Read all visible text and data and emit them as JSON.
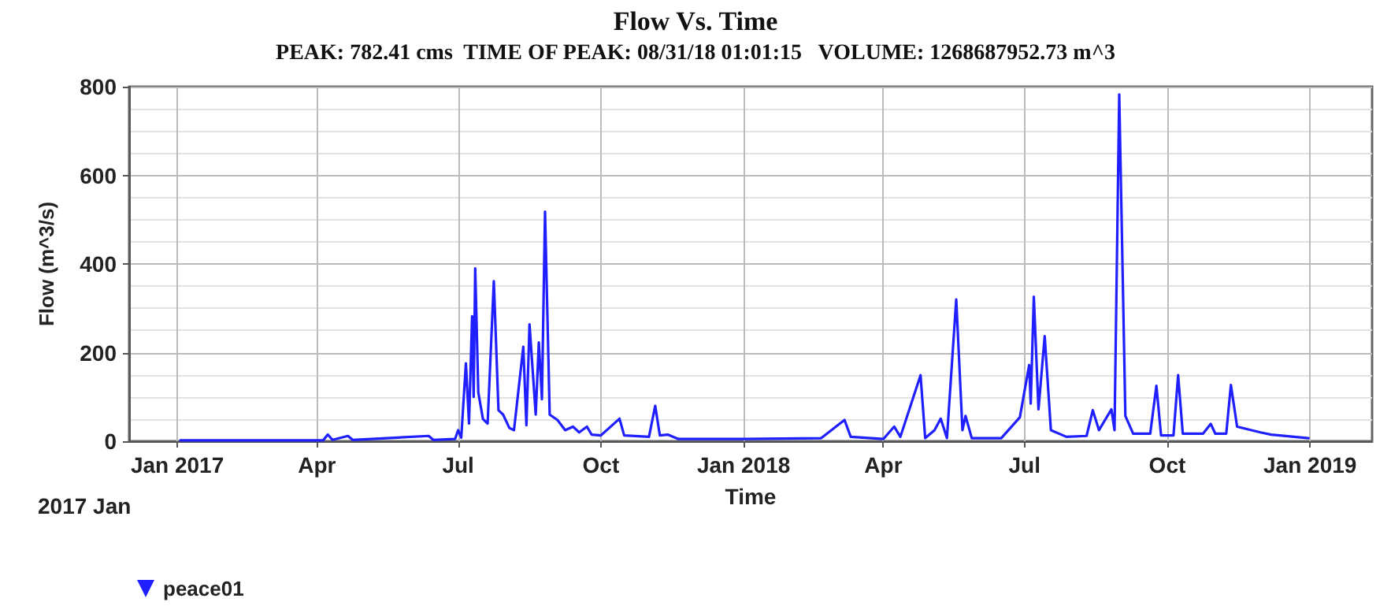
{
  "chart_data": {
    "type": "line",
    "title": "Flow Vs. Time",
    "subtitle": "PEAK: 782.41 cms  TIME OF PEAK: 08/31/18 01:01:15   VOLUME: 1268687952.73 m^3",
    "xlabel": "Time",
    "ylabel": "Flow (m^3/s)",
    "annotations": [
      "2017 Jan"
    ],
    "x": [
      "2017-01-03",
      "2017-04-05",
      "2017-04-08",
      "2017-04-11",
      "2017-04-21",
      "2017-04-24",
      "2017-06-12",
      "2017-06-15",
      "2017-06-29",
      "2017-07-01",
      "2017-07-03",
      "2017-07-06",
      "2017-07-08",
      "2017-07-10",
      "2017-07-11",
      "2017-07-12",
      "2017-07-14",
      "2017-07-17",
      "2017-07-20",
      "2017-07-24",
      "2017-07-27",
      "2017-07-30",
      "2017-08-03",
      "2017-08-06",
      "2017-08-12",
      "2017-08-14",
      "2017-08-16",
      "2017-08-20",
      "2017-08-22",
      "2017-08-24",
      "2017-08-26",
      "2017-08-29",
      "2017-09-03",
      "2017-09-08",
      "2017-09-13",
      "2017-09-17",
      "2017-09-22",
      "2017-09-25",
      "2017-10-01",
      "2017-10-13",
      "2017-10-16",
      "2017-11-01",
      "2017-11-05",
      "2017-11-08",
      "2017-11-13",
      "2017-11-20",
      "2018-01-01",
      "2018-02-20",
      "2018-03-07",
      "2018-03-11",
      "2018-04-01",
      "2018-04-08",
      "2018-04-12",
      "2018-04-25",
      "2018-04-28",
      "2018-05-04",
      "2018-05-08",
      "2018-05-12",
      "2018-05-18",
      "2018-05-22",
      "2018-05-24",
      "2018-05-28",
      "2018-06-16",
      "2018-06-28",
      "2018-07-04",
      "2018-07-05",
      "2018-07-07",
      "2018-07-10",
      "2018-07-14",
      "2018-07-18",
      "2018-07-28",
      "2018-08-10",
      "2018-08-14",
      "2018-08-18",
      "2018-08-26",
      "2018-08-28",
      "2018-08-31T01:01",
      "2018-09-04",
      "2018-09-09",
      "2018-09-20",
      "2018-09-24",
      "2018-09-27",
      "2018-10-05",
      "2018-10-08",
      "2018-10-11",
      "2018-10-24",
      "2018-10-29",
      "2018-11-01",
      "2018-11-08",
      "2018-11-11",
      "2018-11-15",
      "2018-11-30",
      "2018-12-07",
      "2018-12-31"
    ],
    "series": [
      {
        "name": "peace01",
        "color": "#1f1fff",
        "values": [
          2,
          2,
          15,
          3,
          12,
          3,
          12,
          3,
          5,
          25,
          8,
          176,
          40,
          282,
          100,
          390,
          110,
          50,
          40,
          361,
          70,
          60,
          30,
          25,
          213,
          36,
          264,
          60,
          223,
          95,
          518,
          60,
          48,
          25,
          33,
          20,
          33,
          15,
          13,
          51,
          13,
          10,
          80,
          13,
          15,
          5,
          5,
          7,
          48,
          10,
          5,
          33,
          10,
          149,
          7,
          25,
          51,
          7,
          320,
          25,
          57,
          7,
          7,
          54,
          172,
          85,
          326,
          72,
          237,
          25,
          10,
          12,
          70,
          25,
          72,
          25,
          782.41,
          57,
          17,
          17,
          125,
          13,
          13,
          149,
          17,
          17,
          39,
          17,
          17,
          127,
          33,
          20,
          15,
          7
        ]
      }
    ],
    "xlim": [
      "2016-12-01",
      "2019-02-10"
    ],
    "xticks": [
      {
        "value": "2017-01-01",
        "label": "Jan 2017"
      },
      {
        "value": "2017-04-01",
        "label": "Apr"
      },
      {
        "value": "2017-07-01",
        "label": "Jul"
      },
      {
        "value": "2017-10-01",
        "label": "Oct"
      },
      {
        "value": "2018-01-01",
        "label": "Jan 2018"
      },
      {
        "value": "2018-04-01",
        "label": "Apr"
      },
      {
        "value": "2018-07-01",
        "label": "Jul"
      },
      {
        "value": "2018-10-01",
        "label": "Oct"
      },
      {
        "value": "2019-01-01",
        "label": "Jan 2019"
      }
    ],
    "ylim": [
      0,
      800
    ],
    "yticks": [
      0,
      200,
      400,
      600,
      800
    ],
    "grid": true,
    "legend": "bottom left",
    "marker": "none",
    "line_style": "solid"
  }
}
